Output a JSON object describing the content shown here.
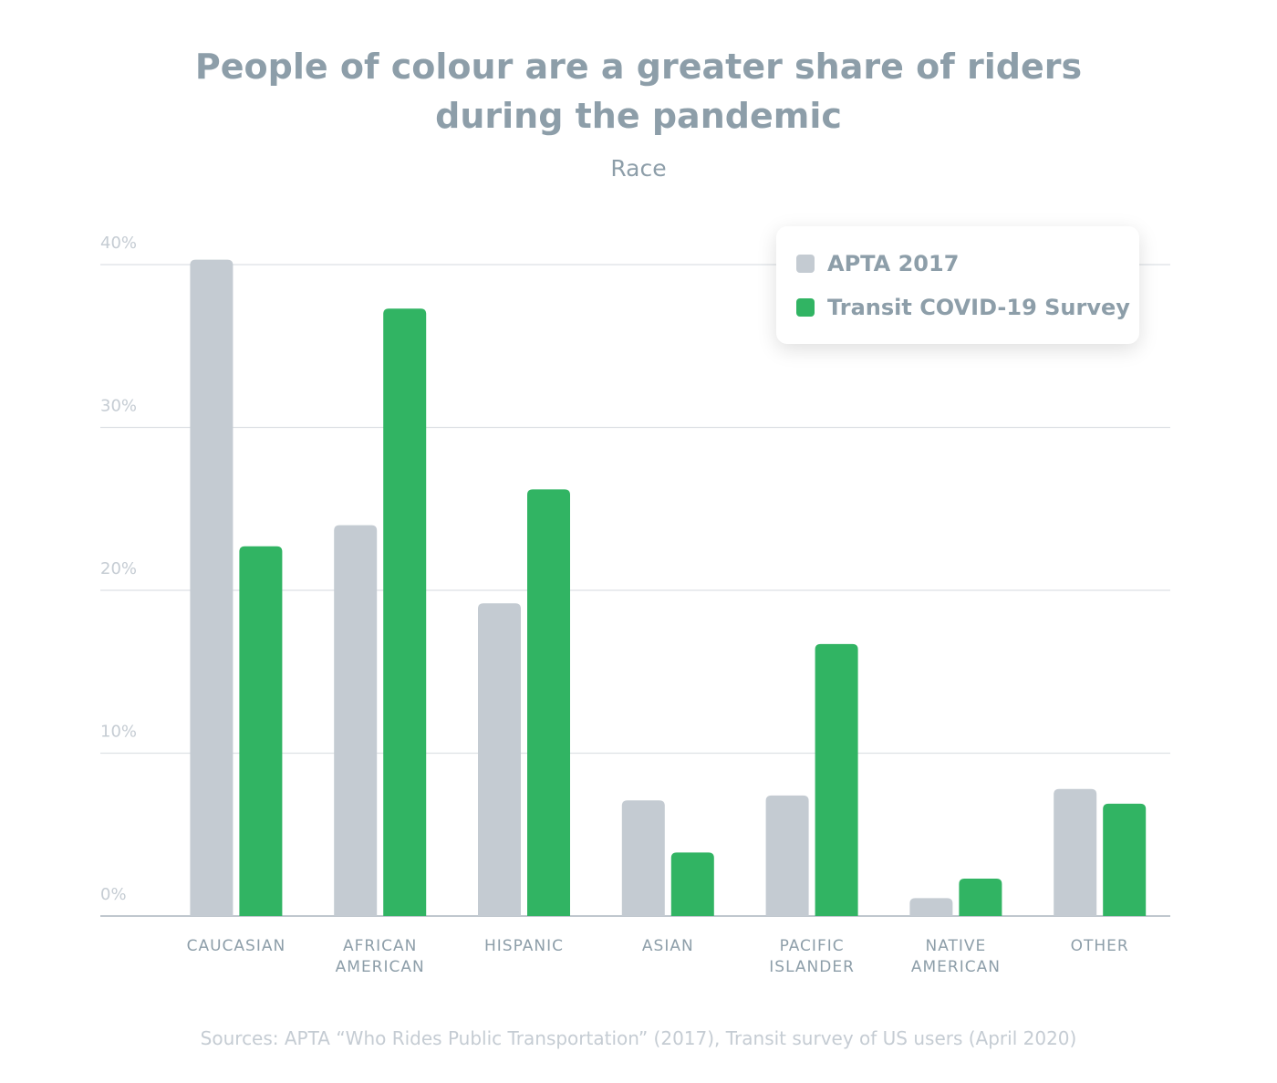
{
  "chart_data": {
    "type": "bar",
    "title": "People of colour are a greater share of riders during the pandemic",
    "subtitle": "Race",
    "categories": [
      "CAUCASIAN",
      "AFRICAN AMERICAN",
      "HISPANIC",
      "ASIAN",
      "PACIFIC ISLANDER",
      "NATIVE AMERICAN",
      "OTHER"
    ],
    "series": [
      {
        "name": "APTA 2017",
        "color": "#c4cbd2",
        "values": [
          40.3,
          24.0,
          19.2,
          7.1,
          7.4,
          1.1,
          7.8
        ]
      },
      {
        "name": "Transit COVID-19 Survey",
        "color": "#31b463",
        "values": [
          22.7,
          37.3,
          26.2,
          3.9,
          16.7,
          2.3,
          6.9
        ]
      }
    ],
    "ylim": [
      0,
      40
    ],
    "yticks": [
      {
        "value": 0,
        "label": "0%"
      },
      {
        "value": 10,
        "label": "10%"
      },
      {
        "value": 20,
        "label": "20%"
      },
      {
        "value": 30,
        "label": "30%"
      },
      {
        "value": 40,
        "label": "40%"
      }
    ],
    "grid": true,
    "legend": "upper-right",
    "source": "Sources: APTA “Who Rides Public Transportation” (2017), Transit survey of US users (April 2020)"
  }
}
